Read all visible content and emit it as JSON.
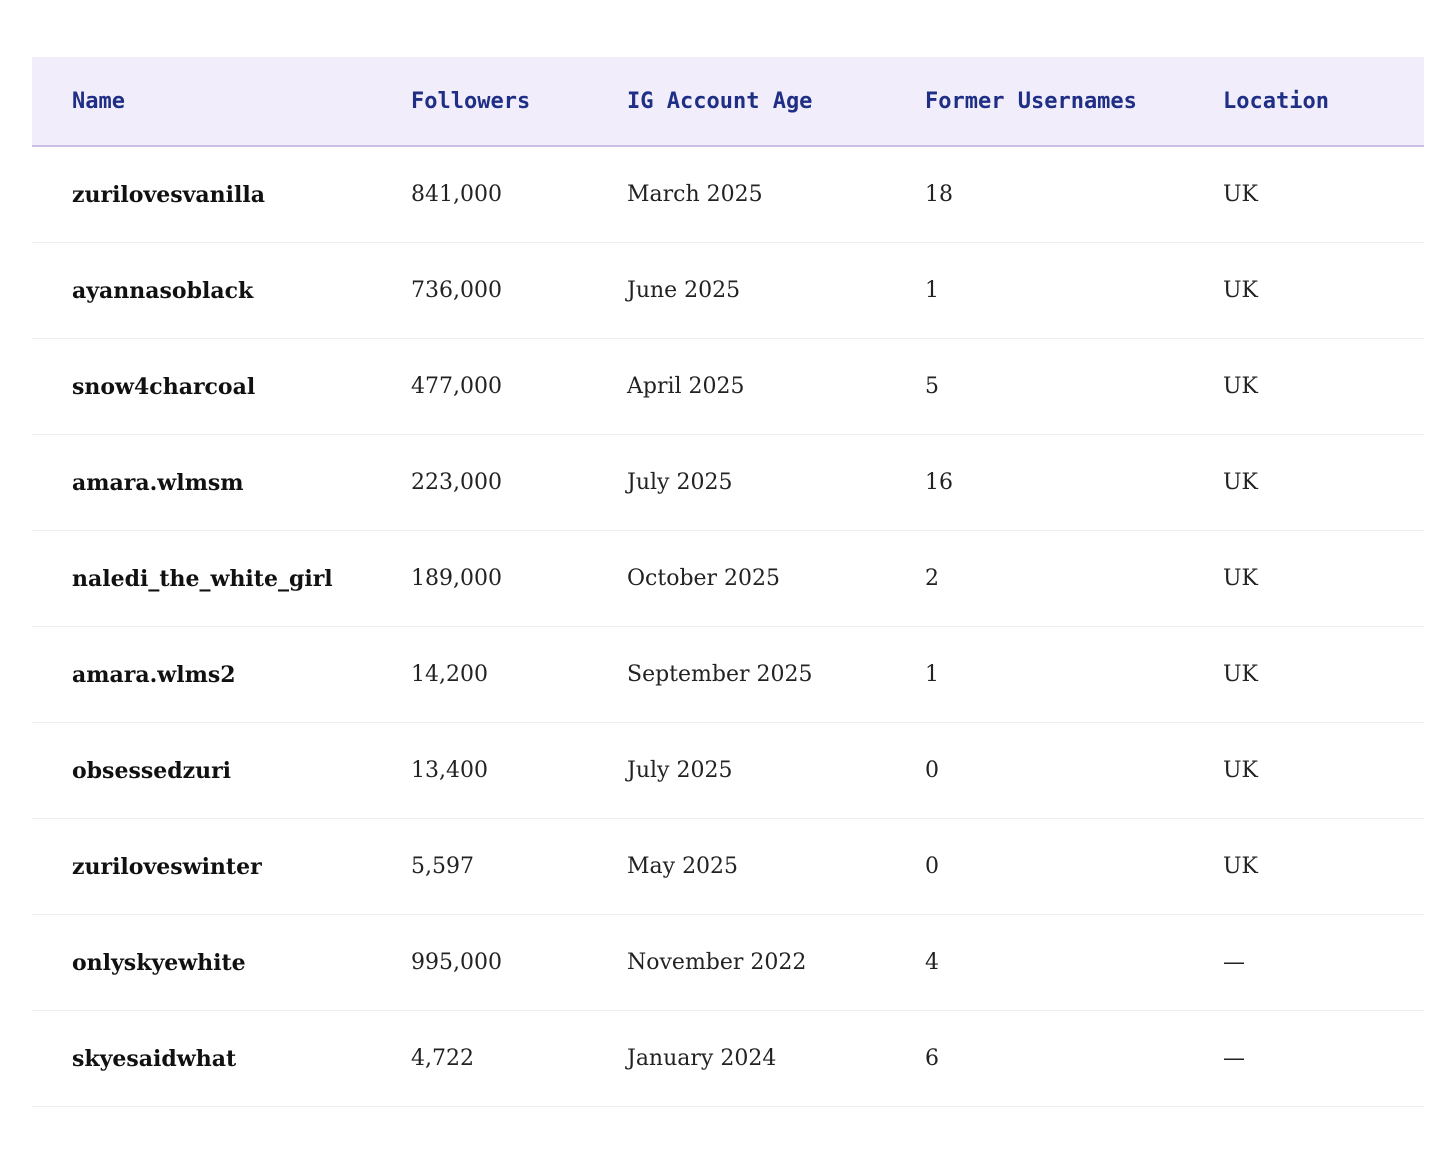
{
  "table": {
    "columns": [
      "Name",
      "Followers",
      "IG Account Age",
      "Former Usernames",
      "Location"
    ],
    "rows": [
      [
        "zurilovesvanilla",
        "841,000",
        "March 2025",
        "18",
        "UK"
      ],
      [
        "ayannasoblack",
        "736,000",
        "June 2025",
        "1",
        "UK"
      ],
      [
        "snow4charcoal",
        "477,000",
        "April 2025",
        "5",
        "UK"
      ],
      [
        "amara.wlmsm",
        "223,000",
        "July 2025",
        "16",
        "UK"
      ],
      [
        "naledi_the_white_girl",
        "189,000",
        "October 2025",
        "2",
        "UK"
      ],
      [
        "amara.wlms2",
        "14,200",
        "September 2025",
        "1",
        "UK"
      ],
      [
        "obsessedzuri",
        "13,400",
        "July 2025",
        "0",
        "UK"
      ],
      [
        "zuriloveswinter",
        "5,597",
        "May 2025",
        "0",
        "UK"
      ],
      [
        "onlyskyewhite",
        "995,000",
        "November 2022",
        "4",
        "—"
      ],
      [
        "skyesaidwhat",
        "4,722",
        "January 2024",
        "6",
        "—"
      ]
    ]
  },
  "colors": {
    "header_bg": "#f2edfb",
    "header_text": "#1f2f86",
    "header_border": "#cdbfe3",
    "row_border": "#ececec"
  }
}
